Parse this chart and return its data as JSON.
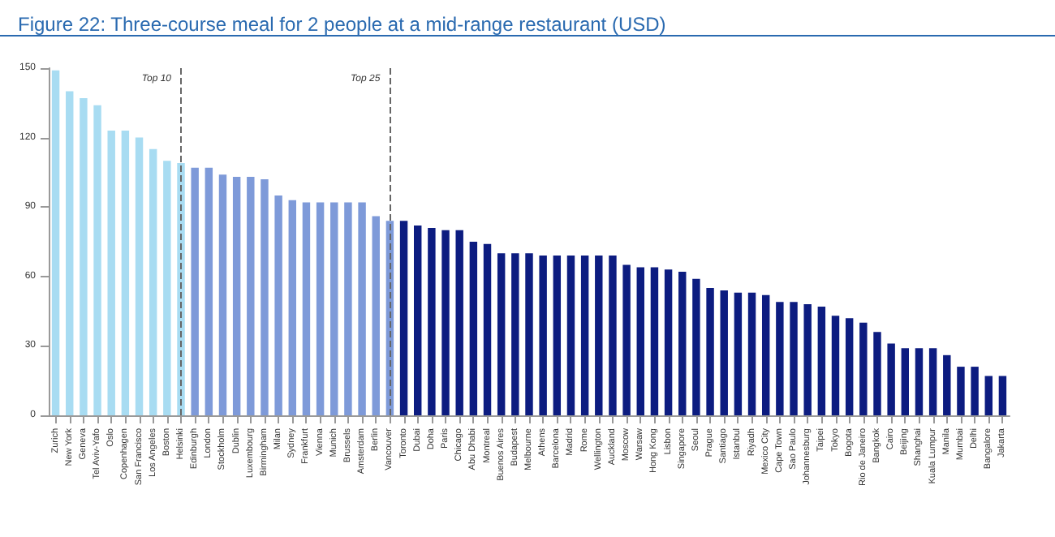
{
  "chart_data": {
    "type": "bar",
    "title": "Figure 22: Three-course meal for 2 people at a mid-range restaurant (USD)",
    "categories": [
      "Zurich",
      "New York",
      "Geneva",
      "Tel Aviv-Yafo",
      "Oslo",
      "Copenhagen",
      "San Francisco",
      "Los Angeles",
      "Boston",
      "Helsinki",
      "Edinburgh",
      "London",
      "Stockholm",
      "Dublin",
      "Luxembourg",
      "Birmingham",
      "Milan",
      "Sydney",
      "Frankfurt",
      "Vienna",
      "Munich",
      "Brussels",
      "Amsterdam",
      "Berlin",
      "Vancouver",
      "Toronto",
      "Dubai",
      "Doha",
      "Paris",
      "Chicago",
      "Abu Dhabi",
      "Montreal",
      "Buenos Aires",
      "Budapest",
      "Melbourne",
      "Athens",
      "Barcelona",
      "Madrid",
      "Rome",
      "Wellington",
      "Auckland",
      "Moscow",
      "Warsaw",
      "Hong Kong",
      "Lisbon",
      "Singapore",
      "Seoul",
      "Prague",
      "Santiago",
      "Istanbul",
      "Riyadh",
      "Mexico City",
      "Cape Town",
      "Sao Paulo",
      "Johannesburg",
      "Taipei",
      "Tokyo",
      "Bogota",
      "Rio de Janeiro",
      "Bangkok",
      "Cairo",
      "Beijing",
      "Shanghai",
      "Kuala Lumpur",
      "Manila",
      "Mumbai",
      "Delhi",
      "Bangalore",
      "Jakarta"
    ],
    "values": [
      149,
      140,
      137,
      134,
      123,
      123,
      120,
      115,
      110,
      109,
      107,
      107,
      104,
      103,
      103,
      102,
      95,
      93,
      92,
      92,
      92,
      92,
      92,
      86,
      84,
      84,
      82,
      81,
      80,
      80,
      75,
      74,
      70,
      70,
      70,
      69,
      69,
      69,
      69,
      69,
      69,
      65,
      64,
      64,
      63,
      62,
      59,
      55,
      54,
      53,
      53,
      52,
      49,
      49,
      48,
      47,
      43,
      42,
      40,
      36,
      31,
      29,
      29,
      29,
      26,
      21,
      21,
      17,
      17
    ],
    "colors": [
      "#a8dcf2",
      "#a8dcf2",
      "#a8dcf2",
      "#a8dcf2",
      "#a8dcf2",
      "#a8dcf2",
      "#a8dcf2",
      "#a8dcf2",
      "#a8dcf2",
      "#a8dcf2",
      "#7e9ad9",
      "#7e9ad9",
      "#7e9ad9",
      "#7e9ad9",
      "#7e9ad9",
      "#7e9ad9",
      "#7e9ad9",
      "#7e9ad9",
      "#7e9ad9",
      "#7e9ad9",
      "#7e9ad9",
      "#7e9ad9",
      "#7e9ad9",
      "#7e9ad9",
      "#7e9ad9",
      "#0c1c80",
      "#0c1c80",
      "#0c1c80",
      "#0c1c80",
      "#0c1c80",
      "#0c1c80",
      "#0c1c80",
      "#0c1c80",
      "#0c1c80",
      "#0c1c80",
      "#0c1c80",
      "#0c1c80",
      "#0c1c80",
      "#0c1c80",
      "#0c1c80",
      "#0c1c80",
      "#0c1c80",
      "#0c1c80",
      "#0c1c80",
      "#0c1c80",
      "#0c1c80",
      "#0c1c80",
      "#0c1c80",
      "#0c1c80",
      "#0c1c80",
      "#0c1c80",
      "#0c1c80",
      "#0c1c80",
      "#0c1c80",
      "#0c1c80",
      "#0c1c80",
      "#0c1c80",
      "#0c1c80",
      "#0c1c80",
      "#0c1c80",
      "#0c1c80",
      "#0c1c80",
      "#0c1c80",
      "#0c1c80",
      "#0c1c80",
      "#0c1c80",
      "#0c1c80",
      "#0c1c80",
      "#0c1c80"
    ],
    "ylim": [
      0,
      150
    ],
    "yticks": [
      0,
      30,
      60,
      90,
      120,
      150
    ],
    "grid": false,
    "ref_lines": [
      {
        "axis": "x",
        "value": "Helsinki",
        "label": "Top 10",
        "color": "#666666",
        "line_style": "dashed"
      },
      {
        "axis": "x",
        "value": "Vancouver",
        "label": "Top 25",
        "color": "#666666",
        "line_style": "dashed"
      }
    ]
  }
}
